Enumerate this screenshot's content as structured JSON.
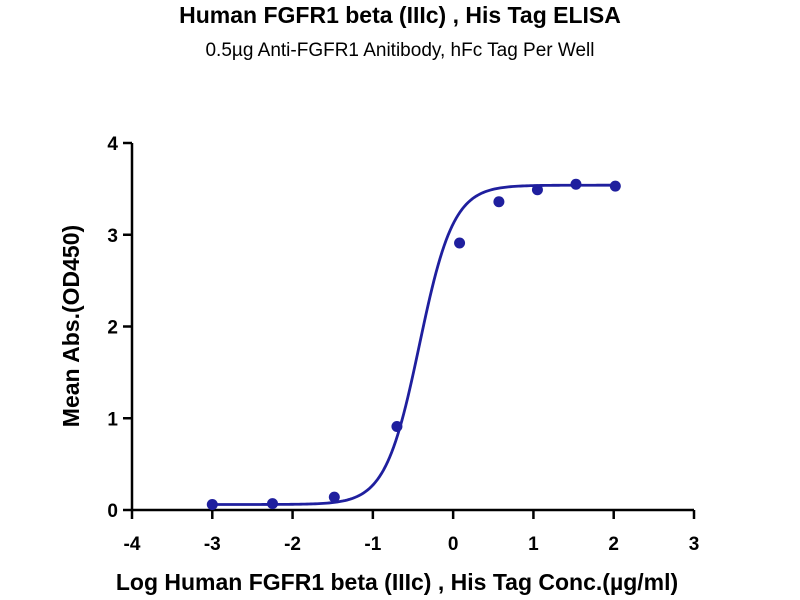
{
  "chart_data": {
    "type": "scatter",
    "title": "Human FGFR1 beta (IIIc) , His Tag ELISA",
    "subtitle": "0.5µg Anti-FGFR1 Anitibody, hFc Tag Per Well",
    "xlabel": "Log Human FGFR1 beta (IIIc) , His Tag Conc.(µg/ml)",
    "ylabel": "Mean Abs.(OD450)",
    "xlim": [
      -4,
      3
    ],
    "ylim": [
      0,
      4
    ],
    "xticks": [
      "-4",
      "-3",
      "-2",
      "-1",
      "0",
      "1",
      "2",
      "3"
    ],
    "yticks": [
      "0",
      "1",
      "2",
      "3",
      "4"
    ],
    "grid": false,
    "color": "#1f1f9e",
    "fit": "four-parameter logistic curve",
    "points": [
      {
        "x": -3.0,
        "y": 0.06
      },
      {
        "x": -2.25,
        "y": 0.07
      },
      {
        "x": -1.48,
        "y": 0.14
      },
      {
        "x": -0.7,
        "y": 0.91
      },
      {
        "x": 0.08,
        "y": 2.91
      },
      {
        "x": 0.57,
        "y": 3.36
      },
      {
        "x": 1.05,
        "y": 3.49
      },
      {
        "x": 1.53,
        "y": 3.55
      },
      {
        "x": 2.02,
        "y": 3.53
      }
    ]
  }
}
